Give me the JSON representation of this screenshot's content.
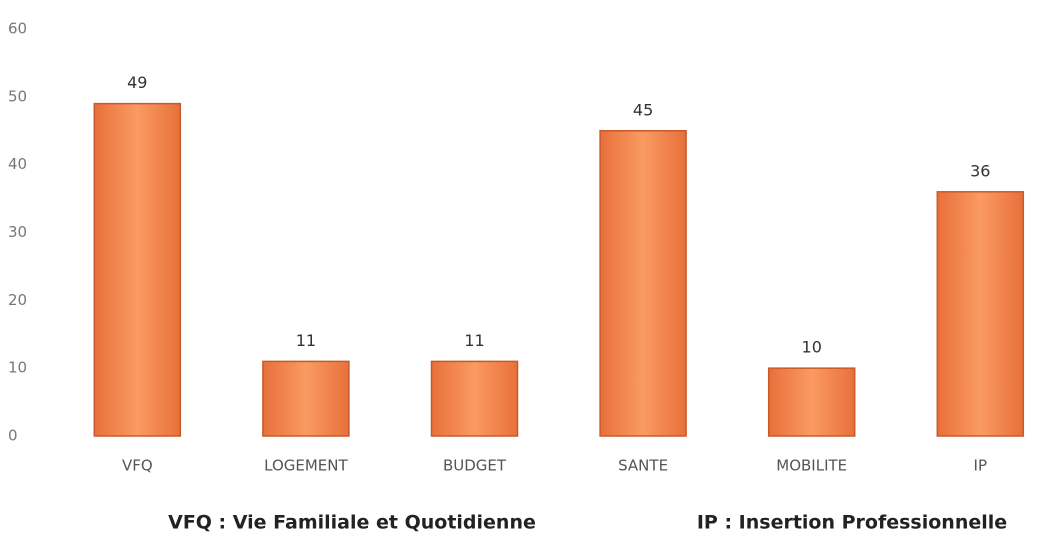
{
  "chart_data": {
    "type": "bar",
    "categories": [
      "VFQ",
      "LOGEMENT",
      "BUDGET",
      "SANTE",
      "MOBILITE",
      "IP"
    ],
    "values": [
      49,
      11,
      11,
      45,
      10,
      36
    ],
    "color": "#f7874c",
    "ylim": [
      0,
      60
    ],
    "yticks": [
      0,
      10,
      20,
      30,
      40,
      50,
      60
    ],
    "grid": false,
    "notes": [
      "VFQ : Vie Familiale et Quotidienne",
      "IP : Insertion Professionnelle"
    ]
  }
}
